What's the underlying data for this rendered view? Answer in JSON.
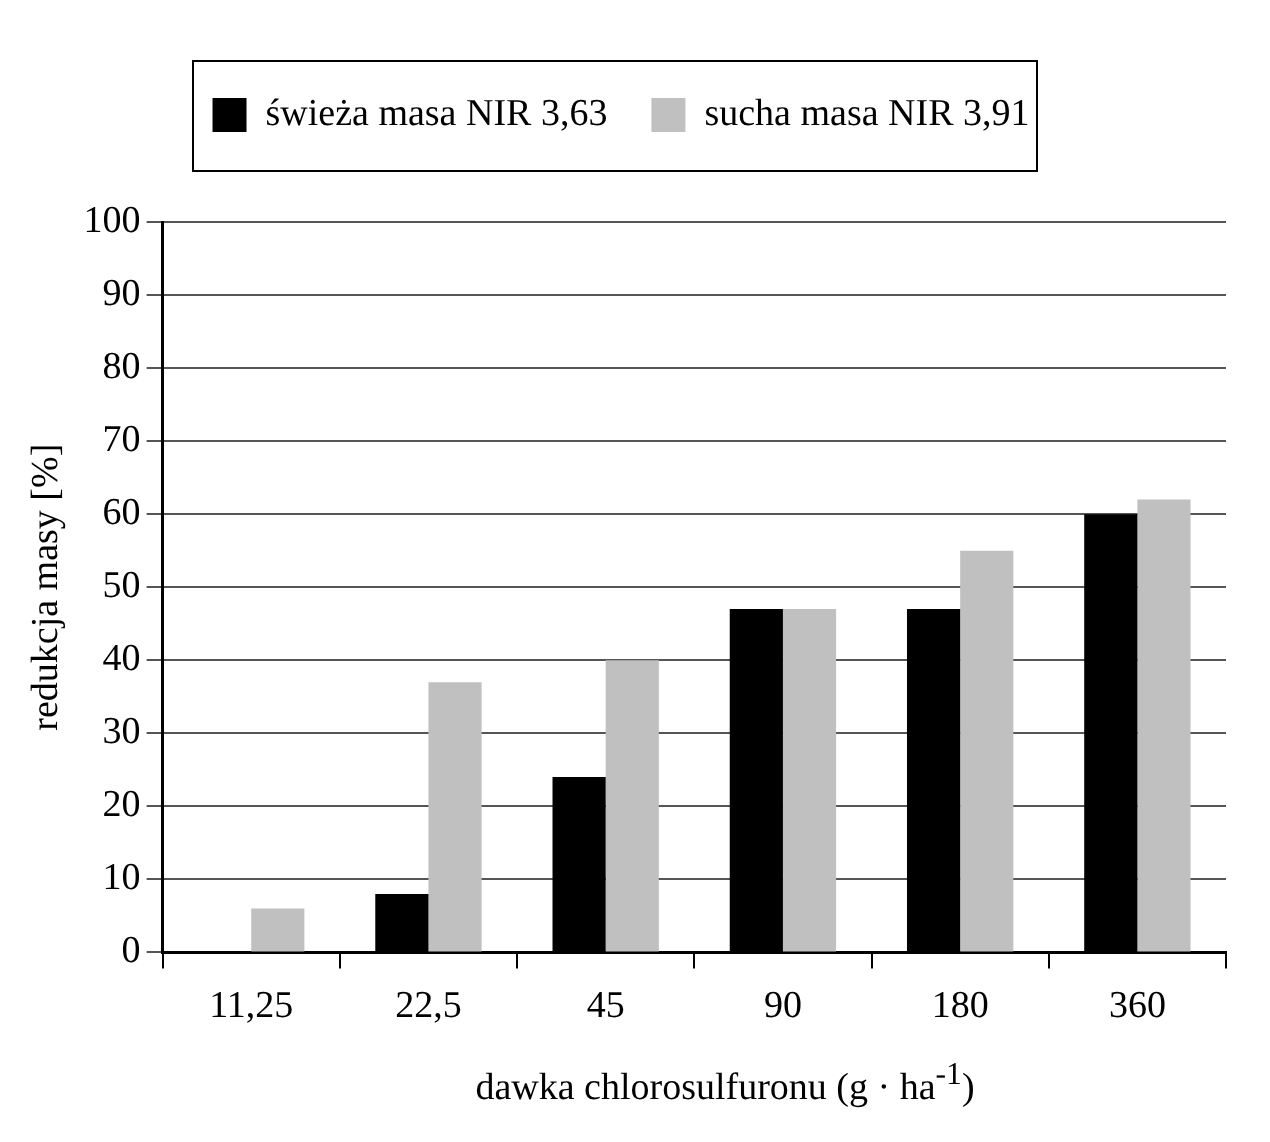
{
  "chart_data": {
    "type": "bar",
    "xlabel": "dawka chlorosulfuronu (g · ha$^{-1}$)",
    "ylabel": "redukcja masy [%]",
    "categories": [
      "11,25",
      "22,5",
      "45",
      "90",
      "180",
      "360"
    ],
    "series": [
      {
        "name": "świeża masa NIR 3,63",
        "color": "#000000",
        "values": [
          0,
          8,
          24,
          47,
          47,
          60
        ]
      },
      {
        "name": "sucha masa NIR 3,91",
        "color": "#c0c0c0",
        "values": [
          6,
          37,
          40,
          47,
          55,
          62
        ]
      }
    ],
    "ylim": [
      0,
      100
    ],
    "yticks": [
      0,
      10,
      20,
      30,
      40,
      50,
      60,
      70,
      80,
      90,
      100
    ],
    "grid": "y",
    "legend": "top"
  }
}
